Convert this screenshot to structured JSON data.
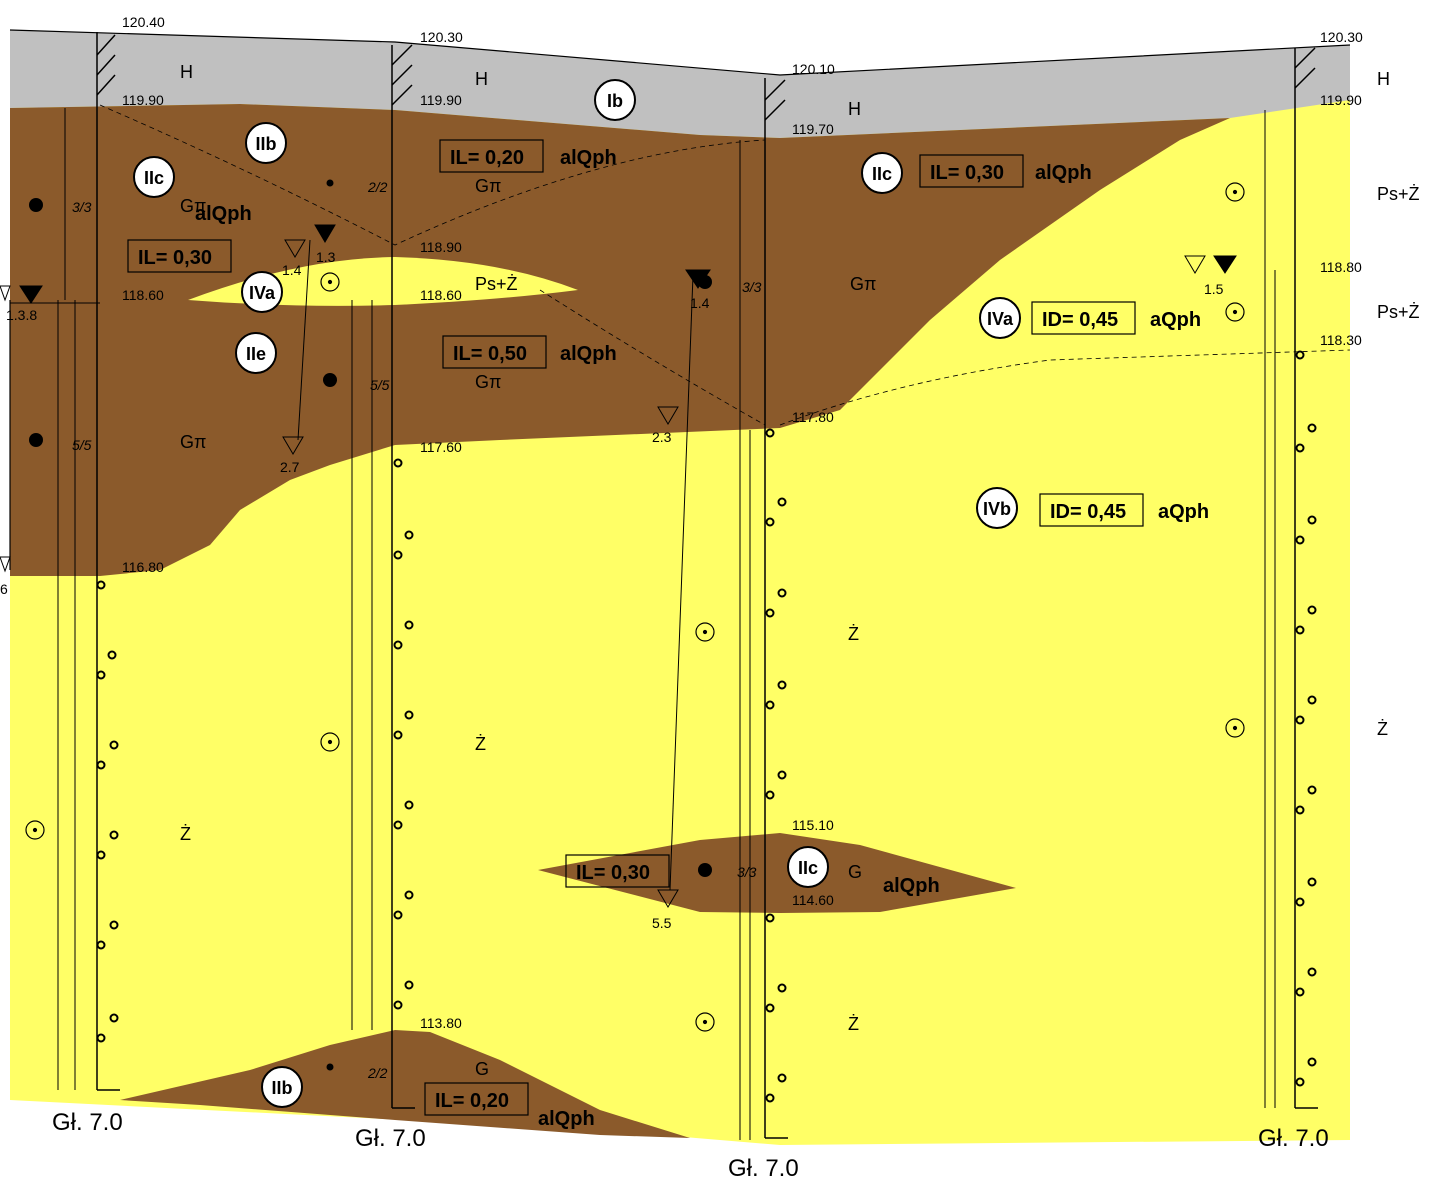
{
  "elevations": {
    "b1_top": "120.40",
    "b1_h_base": "119.90",
    "b1_g1_base": "118.60",
    "b1_bottom_g": "116.80",
    "b2_top": "120.30",
    "b2_h_base": "119.90",
    "b2_l1": "118.90",
    "b2_l2": "118.60",
    "b2_l3": "117.60",
    "b2_l4": "113.80",
    "b3_top": "120.10",
    "b3_h_base": "119.70",
    "b3_l1": "117.80",
    "b3_l2": "115.10",
    "b3_l3": "114.60",
    "b4_top": "120.30",
    "b4_h_base": "119.90",
    "b4_l1": "118.80",
    "b4_l2": "118.30"
  },
  "depths": [
    "Gł. 7.0",
    "Gł. 7.0",
    "Gł. 7.0",
    "Gł. 7.0"
  ],
  "soil_symbols": {
    "H": "H",
    "G_pi": "Gπ",
    "G": "G",
    "Ps_Z": "Ps+Ż",
    "Z": "Ż"
  },
  "geo_layers": {
    "Ib": "Ib",
    "IIb": "IIb",
    "IIc": "IIc",
    "IIe": "IIe",
    "IVa": "IVa",
    "IVb": "IVb"
  },
  "params": {
    "IL_020": "IL= 0,20",
    "IL_030": "IL= 0,30",
    "IL_050": "IL= 0,50",
    "ID_045": "ID= 0,45"
  },
  "strat": {
    "alQph": "alQph",
    "aQph": "aQph"
  },
  "consistency": {
    "c33": "3/3",
    "c22": "2/2",
    "c55": "5/5"
  },
  "water": {
    "w1a": "1.3",
    "w1b": "1.4",
    "w1c": "2.7",
    "w2a": "1.4",
    "w2b": "2.3",
    "w2c": "5.5",
    "w3": "1.5",
    "w0a": "1.3.8",
    "w0b": "6"
  },
  "colors": {
    "anthropogenic": "#c0c0c0",
    "clay": "#8b5a2b",
    "sand": "#ffff66"
  }
}
